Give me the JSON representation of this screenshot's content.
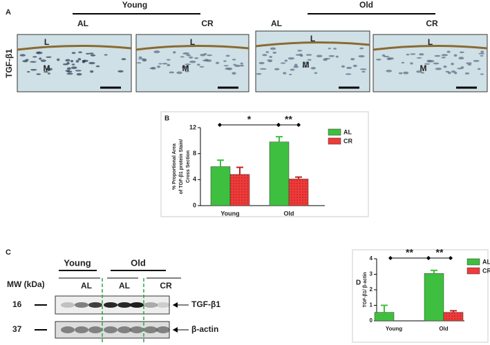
{
  "figure": {
    "panel_a": "A",
    "panel_b": "B",
    "panel_c": "C",
    "panel_d": "D",
    "young": "Young",
    "old": "Old",
    "a_labels": [
      "AL",
      "CR",
      "AL",
      "CR"
    ],
    "stain": "TGF-β1",
    "tissue_l": "L",
    "tissue_m": "M",
    "c_young": "Young",
    "c_old": "Old",
    "mw": "MW (kDa)",
    "c_lanes": [
      "AL",
      "AL",
      "CR"
    ],
    "mw_16": "16",
    "mw_37": "37",
    "band_1": "TGF-β1",
    "band_2": "β-actin"
  },
  "chart_data": [
    {
      "type": "bar",
      "categories": [
        "Young",
        "Old"
      ],
      "series": [
        {
          "name": "AL",
          "color": "#3fbf3f",
          "values": [
            6,
            9.8
          ],
          "errors": [
            1.0,
            0.8
          ]
        },
        {
          "name": "CR",
          "color": "#ee3b3b",
          "values": [
            4.8,
            4.1
          ],
          "errors": [
            1.1,
            0.3
          ]
        }
      ],
      "ylabel": [
        "% Proportional Area",
        "of TGF-β1  protein Stain/",
        "Cross Section"
      ],
      "ylim": [
        0,
        12
      ],
      "yticks": [
        0,
        4,
        8,
        12
      ],
      "annotations": [
        "*",
        "**"
      ]
    },
    {
      "type": "bar",
      "categories": [
        "Young",
        "Old"
      ],
      "series": [
        {
          "name": "AL",
          "color": "#3fbf3f",
          "values": [
            0.55,
            3.05
          ],
          "errors": [
            0.45,
            0.2
          ]
        },
        {
          "name": "CR",
          "color": "#ee3b3b",
          "values": [
            null,
            0.55
          ],
          "errors": [
            null,
            0.1
          ]
        }
      ],
      "ylabel": [
        "TGF-β1/ β-actin"
      ],
      "ylim": [
        0,
        4
      ],
      "yticks": [
        0,
        1,
        2,
        3,
        4
      ],
      "annotations": [
        "**",
        "**"
      ]
    }
  ]
}
